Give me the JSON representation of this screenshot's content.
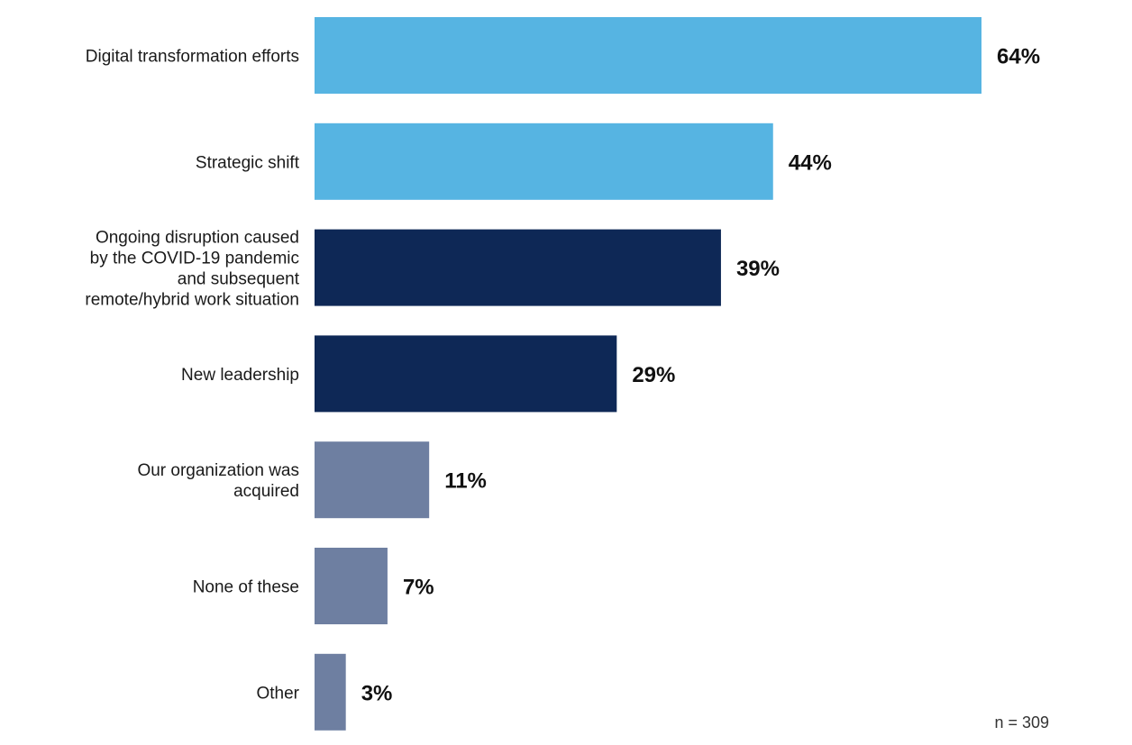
{
  "chart_data": {
    "type": "bar",
    "orientation": "horizontal",
    "title": "",
    "xlabel": "",
    "ylabel": "",
    "xlim": [
      0,
      64
    ],
    "grid": false,
    "legend": "none",
    "unit": "%",
    "categories": [
      [
        "Digital transformation efforts"
      ],
      [
        "Strategic shift"
      ],
      [
        "Ongoing disruption caused",
        "by the COVID-19 pandemic",
        "and subsequent",
        "remote/hybrid work situation"
      ],
      [
        "New leadership"
      ],
      [
        "Our organization was",
        "acquired"
      ],
      [
        "None of these"
      ],
      [
        "Other"
      ]
    ],
    "values": [
      64,
      44,
      39,
      29,
      11,
      7,
      3
    ],
    "value_labels": [
      "64%",
      "44%",
      "39%",
      "29%",
      "11%",
      "7%",
      "3%"
    ],
    "colors": [
      "#56b4e2",
      "#56b4e2",
      "#0e2856",
      "#0e2856",
      "#6e7fa1",
      "#6e7fa1",
      "#6e7fa1"
    ],
    "note": "n = 309"
  }
}
